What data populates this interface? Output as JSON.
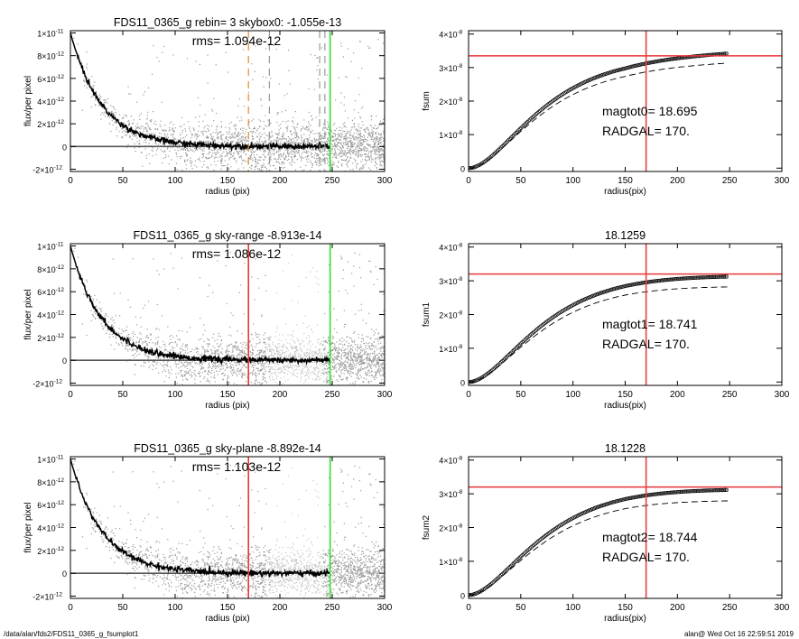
{
  "footer": {
    "path": "/data/alan/fds2/FDS11_0365_g_fsumplot1",
    "user": "alan@",
    "timestamp": "Wed Oct 16 22:59:51 2019"
  },
  "colors": {
    "scatter": "#9a9a9a",
    "profile": "#000000",
    "red_marker": "#e8373a",
    "green_marker": "#33dd33",
    "orange_marker": "#e8882a",
    "grey_marker": "#9a9a9a"
  },
  "chart_data": [
    {
      "type": "scatter",
      "title": "FDS11_0365_g rebin= 3    skybox0: -1.055e-13",
      "annotation": "rms= 1.094e-12",
      "xlabel": "radius (pix)",
      "ylabel": "flux/per pixel",
      "xlim": [
        0,
        300
      ],
      "ylim": [
        -2.2e-12,
        1.02e-11
      ],
      "xticks": [
        0,
        50,
        100,
        150,
        200,
        250,
        300
      ],
      "yticks": [
        {
          "v": 1e-11,
          "m": "1×10",
          "e": "-11"
        },
        {
          "v": 8e-12,
          "m": "8×10",
          "e": "-12"
        },
        {
          "v": 6e-12,
          "m": "6×10",
          "e": "-12"
        },
        {
          "v": 4e-12,
          "m": "4×10",
          "e": "-12"
        },
        {
          "v": 2e-12,
          "m": "2×10",
          "e": "-12"
        },
        {
          "v": 0,
          "m": "0",
          "e": ""
        },
        {
          "v": -2e-12,
          "m": "-2×10",
          "e": "-12"
        }
      ],
      "vlines": [
        {
          "x": 170,
          "color": "orange_marker",
          "style": "dashed"
        },
        {
          "x": 190,
          "color": "grey_marker",
          "style": "dashed"
        },
        {
          "x": 238,
          "color": "grey_marker",
          "style": "dashed"
        },
        {
          "x": 243,
          "color": "grey_marker",
          "style": "dashed"
        },
        {
          "x": 248,
          "color": "green_marker",
          "style": "solid"
        }
      ],
      "background_level": 0,
      "profile": {
        "amplitude": 1e-11,
        "scale": 30,
        "x_max": 248
      },
      "scatter": {
        "x_max": 300,
        "count": 2600,
        "sigma": 1.09e-12,
        "lighter_band": null
      }
    },
    {
      "type": "line",
      "title": "",
      "xlabel": "radius(pix)",
      "ylabel": "fsum",
      "xlim": [
        0,
        300
      ],
      "ylim": [
        -1e-09,
        4.1e-08
      ],
      "xticks": [
        0,
        50,
        100,
        150,
        200,
        250,
        300
      ],
      "yticks": [
        {
          "v": 4e-08,
          "m": "4×10",
          "e": "-8"
        },
        {
          "v": 3e-08,
          "m": "3×10",
          "e": "-8"
        },
        {
          "v": 2e-08,
          "m": "2×10",
          "e": "-8"
        },
        {
          "v": 1e-08,
          "m": "1×10",
          "e": "-8"
        },
        {
          "v": 0,
          "m": "0",
          "e": ""
        }
      ],
      "labels": [
        "magtot0=  18.695",
        "RADGAL=    170."
      ],
      "hline": 3.35e-08,
      "vline": 170,
      "curve": {
        "plateau": 3.35e-08,
        "scale": 40,
        "x_max": 248,
        "rise_after": 1.2e-09
      },
      "dashed": {
        "plateau": 3.08e-08,
        "scale": 40,
        "x_max": 248,
        "rise_after": 1e-09
      }
    },
    {
      "type": "scatter",
      "title": "FDS11_0365_g sky-range -8.913e-14",
      "annotation": "rms= 1.086e-12",
      "xlabel": "radius (pix)",
      "ylabel": "flux/per pixel",
      "xlim": [
        0,
        300
      ],
      "ylim": [
        -2.2e-12,
        1.02e-11
      ],
      "xticks": [
        0,
        50,
        100,
        150,
        200,
        250,
        300
      ],
      "yticks": [
        {
          "v": 1e-11,
          "m": "1×10",
          "e": "-11"
        },
        {
          "v": 8e-12,
          "m": "8×10",
          "e": "-12"
        },
        {
          "v": 6e-12,
          "m": "6×10",
          "e": "-12"
        },
        {
          "v": 4e-12,
          "m": "4×10",
          "e": "-12"
        },
        {
          "v": 2e-12,
          "m": "2×10",
          "e": "-12"
        },
        {
          "v": 0,
          "m": "0",
          "e": ""
        },
        {
          "v": -2e-12,
          "m": "-2×10",
          "e": "-12"
        }
      ],
      "vlines": [
        {
          "x": 170,
          "color": "red_marker",
          "style": "solid"
        },
        {
          "x": 248,
          "color": "green_marker",
          "style": "solid"
        }
      ],
      "background_level": 0,
      "profile": {
        "amplitude": 1e-11,
        "scale": 30,
        "x_max": 248
      },
      "scatter": {
        "x_max": 300,
        "count": 2600,
        "sigma": 1.09e-12,
        "lighter_band": [
          190,
          240
        ]
      }
    },
    {
      "type": "line",
      "title": "18.1259",
      "xlabel": "radius(pix)",
      "ylabel": "fsum1",
      "xlim": [
        0,
        300
      ],
      "ylim": [
        -1e-09,
        4.1e-08
      ],
      "xticks": [
        0,
        50,
        100,
        150,
        200,
        250,
        300
      ],
      "yticks": [
        {
          "v": 4e-08,
          "m": "4×10",
          "e": "-8"
        },
        {
          "v": 3e-08,
          "m": "3×10",
          "e": "-8"
        },
        {
          "v": 2e-08,
          "m": "2×10",
          "e": "-8"
        },
        {
          "v": 1e-08,
          "m": "1×10",
          "e": "-8"
        },
        {
          "v": 0,
          "m": "0",
          "e": ""
        }
      ],
      "labels": [
        "magtot1=  18.741",
        "RADGAL=    170."
      ],
      "hline": 3.2e-08,
      "vline": 170,
      "curve": {
        "plateau": 3.2e-08,
        "scale": 40,
        "x_max": 248,
        "rise_after": -3e-10
      },
      "dashed": {
        "plateau": 2.9e-08,
        "scale": 40,
        "x_max": 248,
        "rise_after": -4e-10
      }
    },
    {
      "type": "scatter",
      "title": "FDS11_0365_g sky-plane -8.892e-14",
      "annotation": "rms= 1.103e-12",
      "xlabel": "radius (pix)",
      "ylabel": "flux/per pixel",
      "xlim": [
        0,
        300
      ],
      "ylim": [
        -2.2e-12,
        1.02e-11
      ],
      "xticks": [
        0,
        50,
        100,
        150,
        200,
        250,
        300
      ],
      "yticks": [
        {
          "v": 1e-11,
          "m": "1×10",
          "e": "-11"
        },
        {
          "v": 8e-12,
          "m": "8×10",
          "e": "-12"
        },
        {
          "v": 6e-12,
          "m": "6×10",
          "e": "-12"
        },
        {
          "v": 4e-12,
          "m": "4×10",
          "e": "-12"
        },
        {
          "v": 2e-12,
          "m": "2×10",
          "e": "-12"
        },
        {
          "v": 0,
          "m": "0",
          "e": ""
        },
        {
          "v": -2e-12,
          "m": "-2×10",
          "e": "-12"
        }
      ],
      "vlines": [
        {
          "x": 170,
          "color": "red_marker",
          "style": "solid"
        },
        {
          "x": 248,
          "color": "green_marker",
          "style": "solid"
        }
      ],
      "background_level": 0,
      "profile": {
        "amplitude": 1e-11,
        "scale": 30,
        "x_max": 248
      },
      "scatter": {
        "x_max": 300,
        "count": 2600,
        "sigma": 1.1e-12,
        "lighter_band": [
          190,
          240
        ]
      }
    },
    {
      "type": "line",
      "title": "18.1228",
      "xlabel": "radius(pix)",
      "ylabel": "fsum2",
      "xlim": [
        0,
        300
      ],
      "ylim": [
        -1e-09,
        4.1e-08
      ],
      "xticks": [
        0,
        50,
        100,
        150,
        200,
        250,
        300
      ],
      "yticks": [
        {
          "v": 4e-08,
          "m": "4×10",
          "e": "-8"
        },
        {
          "v": 3e-08,
          "m": "3×10",
          "e": "-8"
        },
        {
          "v": 2e-08,
          "m": "2×10",
          "e": "-8"
        },
        {
          "v": 1e-08,
          "m": "1×10",
          "e": "-8"
        },
        {
          "v": 0,
          "m": "0",
          "e": ""
        }
      ],
      "labels": [
        "magtot2=  18.744",
        "RADGAL=    170."
      ],
      "hline": 3.2e-08,
      "vline": 170,
      "curve": {
        "plateau": 3.2e-08,
        "scale": 40,
        "x_max": 248,
        "rise_after": -4e-10
      },
      "dashed": {
        "plateau": 2.88e-08,
        "scale": 40,
        "x_max": 248,
        "rise_after": -5e-10
      }
    }
  ]
}
